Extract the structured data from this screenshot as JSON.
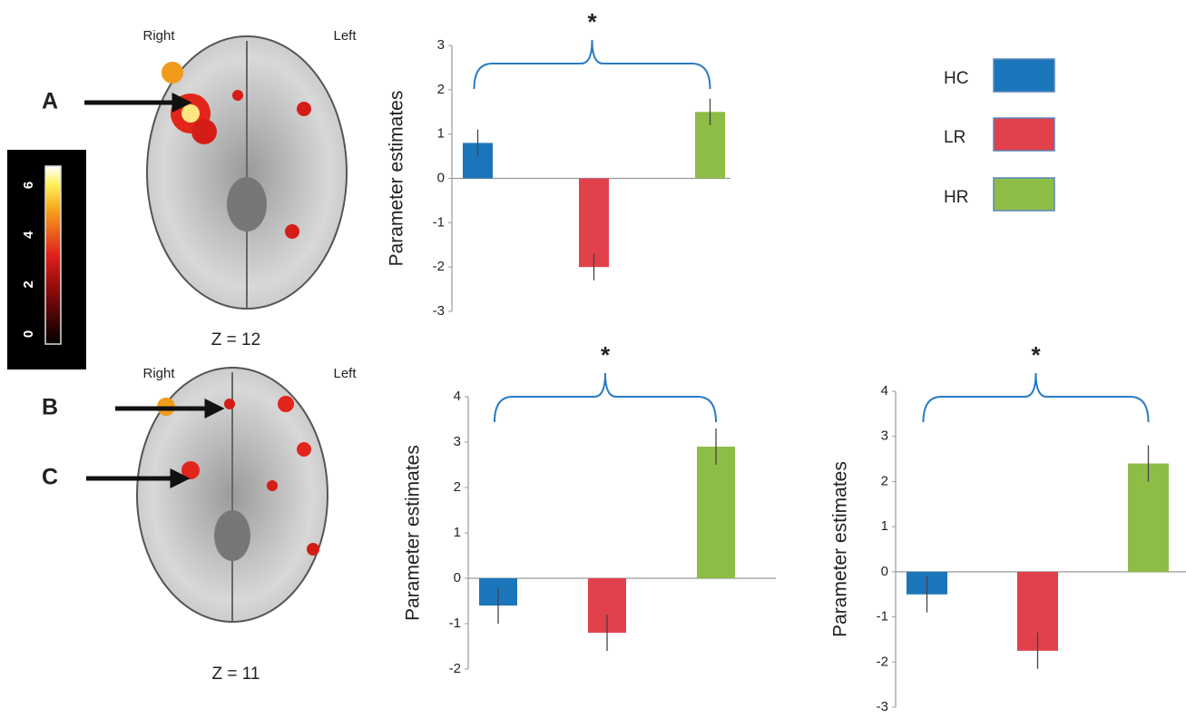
{
  "chart_data": [
    {
      "type": "bar",
      "ylabel": "Parameter estimates",
      "annotation": "*",
      "ylim": [
        -3,
        3
      ],
      "yticks": [
        -3,
        -2,
        -1,
        0,
        1,
        2,
        3
      ],
      "legend": true,
      "series": [
        {
          "name": "HC",
          "color": "#1b75bb",
          "values": [
            0.8
          ],
          "errors": [
            0.3
          ]
        },
        {
          "name": "LR",
          "color": "#e0414b",
          "values": [
            -2.0
          ],
          "errors": [
            0.3
          ]
        },
        {
          "name": "HR",
          "color": "#8dbd46",
          "values": [
            1.5
          ],
          "errors": [
            0.3
          ]
        }
      ]
    },
    {
      "type": "bar",
      "ylabel": "Parameter estimates",
      "annotation": "*",
      "ylim": [
        -2,
        4
      ],
      "yticks": [
        -2,
        -1,
        0,
        1,
        2,
        3,
        4
      ],
      "series": [
        {
          "color": "#1b75bb",
          "values": [
            -0.6
          ],
          "errors": [
            0.4
          ]
        },
        {
          "color": "#e0414b",
          "values": [
            -1.2
          ],
          "errors": [
            0.4
          ]
        },
        {
          "color": "#8dbd46",
          "values": [
            2.9
          ],
          "errors": [
            0.4
          ]
        }
      ]
    },
    {
      "type": "bar",
      "ylabel": "Parameter estimates",
      "annotation": "*",
      "ylim": [
        -3,
        4
      ],
      "yticks": [
        -3,
        -2,
        -1,
        0,
        1,
        2,
        3,
        4
      ],
      "series": [
        {
          "color": "#1b75bb",
          "values": [
            -0.5
          ],
          "errors": [
            0.4
          ]
        },
        {
          "color": "#e0414b",
          "values": [
            -1.75
          ],
          "errors": [
            0.4
          ]
        },
        {
          "color": "#8dbd46",
          "values": [
            2.4
          ],
          "errors": [
            0.4
          ]
        }
      ]
    }
  ],
  "brain_panels": [
    {
      "right": "Right",
      "left": "Left",
      "z": "Z = 12",
      "labels": [
        "A"
      ]
    },
    {
      "right": "Right",
      "left": "Left",
      "z": "Z = 11",
      "labels": [
        "B",
        "C"
      ]
    }
  ],
  "colorbar": {
    "ticks": [
      0,
      2,
      4,
      6
    ]
  }
}
